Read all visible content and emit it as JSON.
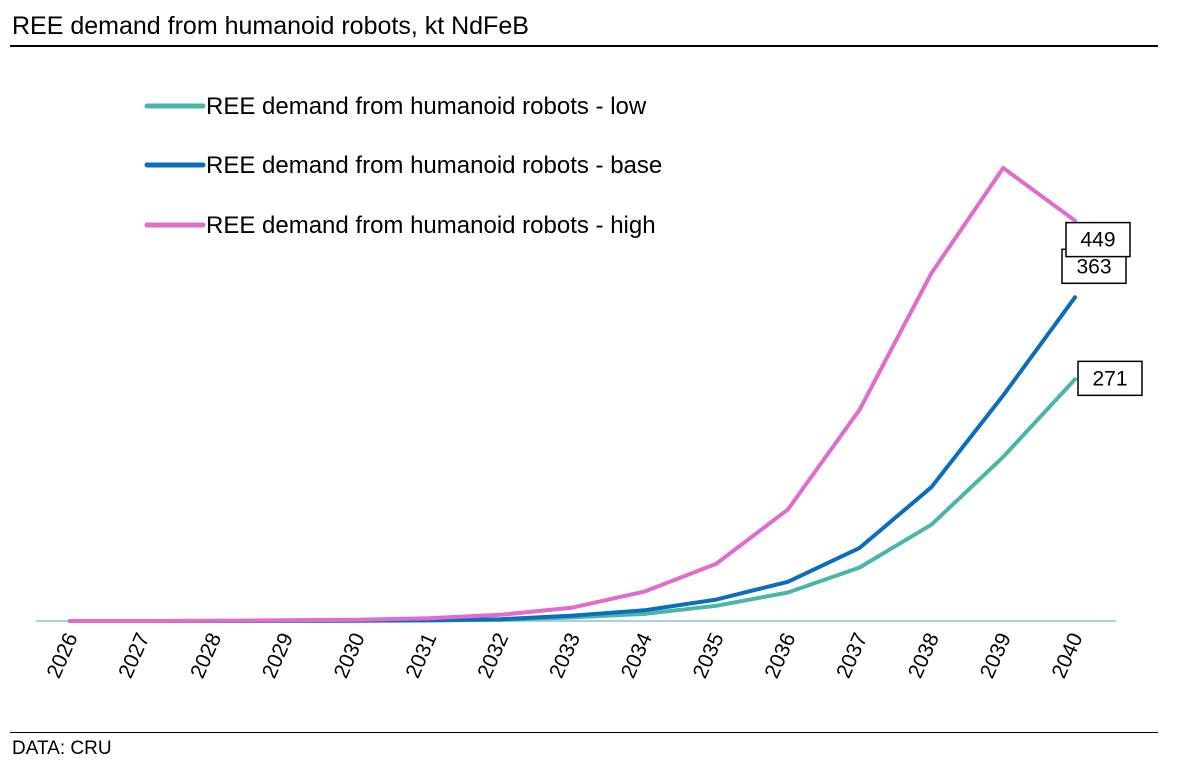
{
  "title": "REE demand from humanoid robots, kt NdFeB",
  "source": "DATA: CRU",
  "chart_data": {
    "type": "line",
    "title": "REE demand from humanoid robots, kt NdFeB",
    "xlabel": "",
    "ylabel": "",
    "categories": [
      "2026",
      "2027",
      "2028",
      "2029",
      "2030",
      "2031",
      "2032",
      "2033",
      "2034",
      "2035",
      "2036",
      "2037",
      "2038",
      "2039",
      "2040"
    ],
    "ylim": [
      0,
      450
    ],
    "y_axis_shown": false,
    "grid": false,
    "legend_position": "top-left",
    "series": [
      {
        "name": "REE demand from humanoid robots - low",
        "color": "#4AB5A8",
        "values": [
          0,
          0,
          0,
          0.1,
          0.3,
          0.6,
          1.5,
          4,
          8,
          17,
          32,
          60,
          108,
          184,
          271
        ],
        "end_label": "271"
      },
      {
        "name": "REE demand from humanoid robots - base",
        "color": "#0A6EBD",
        "values": [
          0,
          0,
          0,
          0.2,
          0.4,
          0.8,
          2,
          6,
          12,
          24,
          44,
          82,
          150,
          253,
          363
        ],
        "end_label": "363"
      },
      {
        "name": "REE demand from humanoid robots - high",
        "color": "#E06CCB",
        "values": [
          0,
          0,
          0.3,
          0.8,
          1.5,
          3,
          7,
          15,
          33,
          64,
          125,
          237,
          390,
          508,
          449
        ],
        "end_label": "449"
      }
    ],
    "baseline_color": "#A9CDEB",
    "label_box_border": "#000000"
  }
}
